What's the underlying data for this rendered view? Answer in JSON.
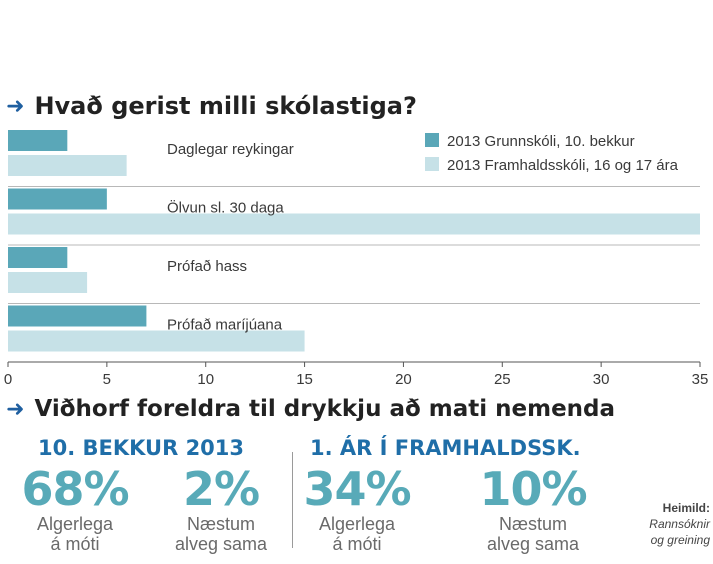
{
  "title": "Hvað gerist milli skólastiga?",
  "chart_data": {
    "type": "bar",
    "orientation": "horizontal",
    "categories": [
      "Daglegar reykingar",
      "Ölvun sl. 30 daga",
      "Prófað hass",
      "Prófað maríjúana"
    ],
    "series": [
      {
        "name": "2013 Grunnskóli, 10. bekkur",
        "values": [
          3,
          5,
          3,
          7
        ],
        "color": "#5aa7b8"
      },
      {
        "name": "2013 Framhaldsskóli, 16 og 17 ára",
        "values": [
          6,
          35,
          4,
          15
        ],
        "color": "#c6e1e7"
      }
    ],
    "xlim": [
      0,
      35
    ],
    "xticks": [
      0,
      5,
      10,
      15,
      20,
      25,
      30,
      35
    ],
    "legend_position": "top-right",
    "grid": false
  },
  "section2": {
    "title": "Viðhorf foreldra til drykkju að mati nemenda",
    "groups": [
      {
        "heading": "10. BEKKUR 2013",
        "stats": [
          {
            "value": "68%",
            "caption_line1": "Algerlega",
            "caption_line2": "á móti"
          },
          {
            "value": "2%",
            "caption_line1": "Næstum",
            "caption_line2": "alveg sama"
          }
        ]
      },
      {
        "heading": "1. ÁR Í FRAMHALDSSK.",
        "stats": [
          {
            "value": "34%",
            "caption_line1": "Algerlega",
            "caption_line2": "á móti"
          },
          {
            "value": "10%",
            "caption_line1": "Næstum",
            "caption_line2": "alveg sama"
          }
        ]
      }
    ],
    "source_label": "Heimild:",
    "source_line1": "Rannsóknir",
    "source_line2": "og greining"
  },
  "colors": {
    "accent": "#1f6ea8",
    "arrow": "#1f5fa0",
    "series_dark": "#5aa7b8",
    "series_light": "#c6e1e7",
    "pct": "#58aab8"
  }
}
